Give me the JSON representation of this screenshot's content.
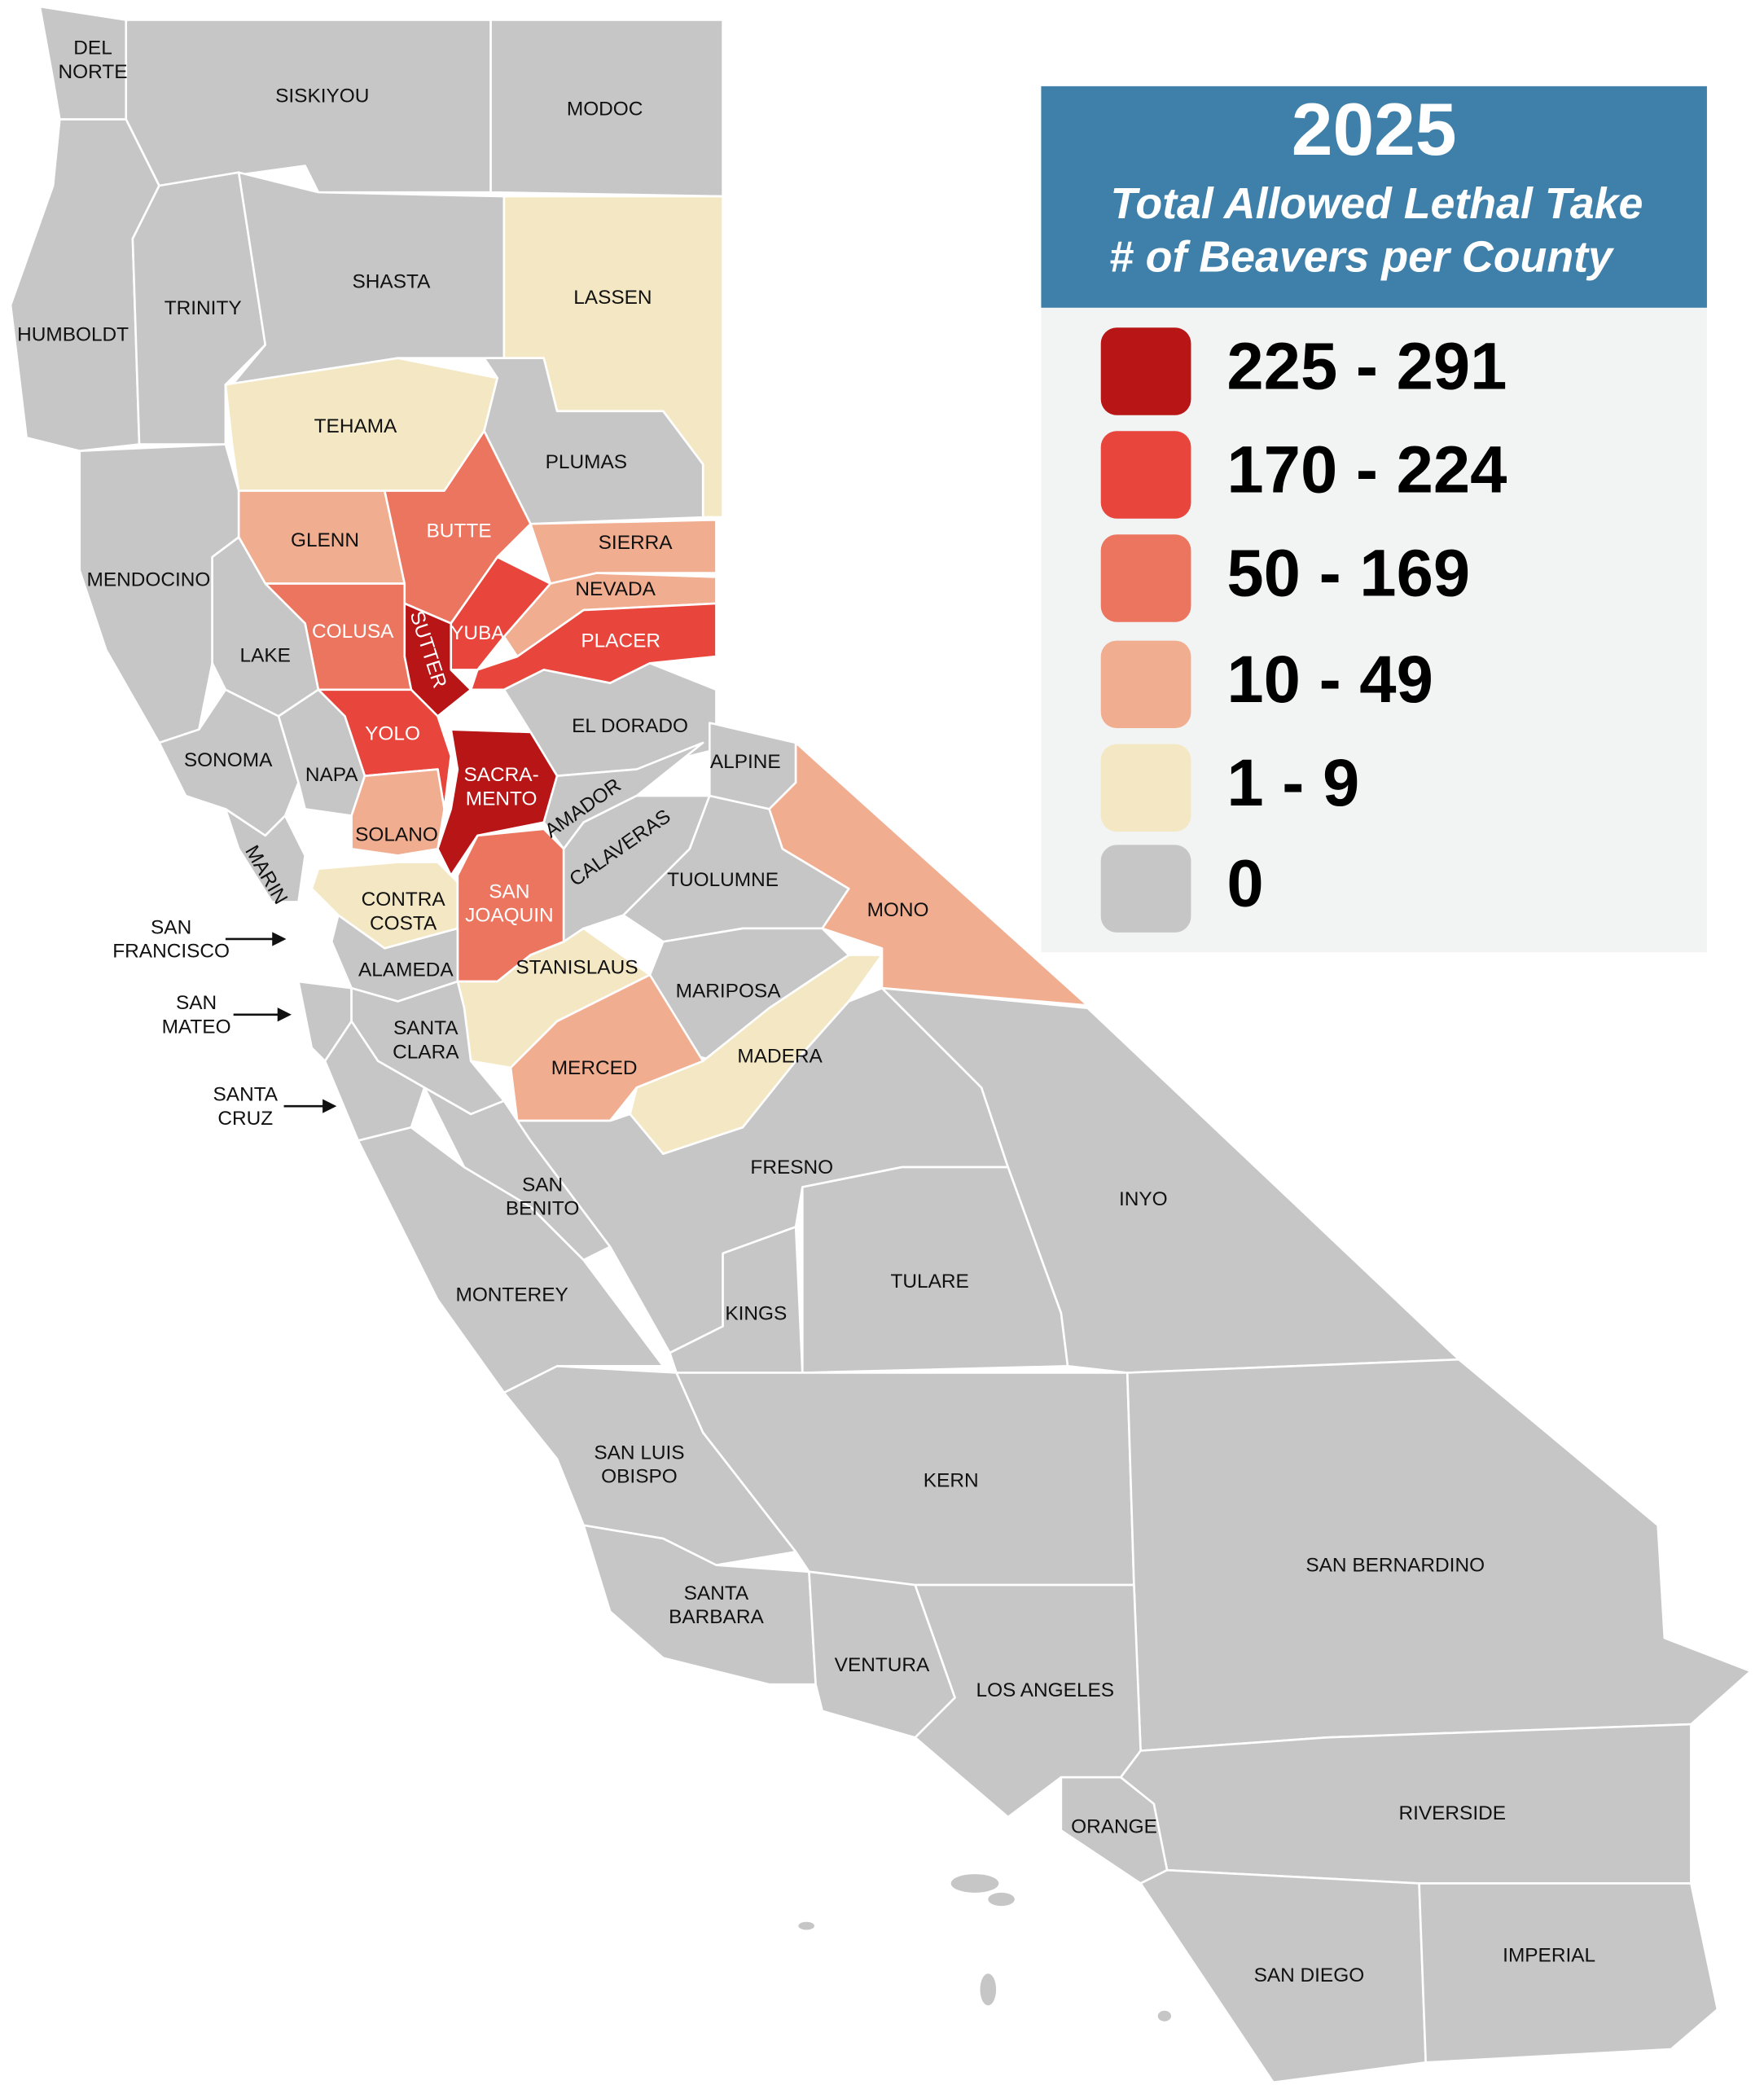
{
  "legend": {
    "title": "2025",
    "subtitle": [
      "Total Allowed Lethal Take",
      "# of Beavers per County"
    ],
    "items": [
      {
        "label": "225 - 291",
        "color": "#b71516"
      },
      {
        "label": "170 - 224",
        "color": "#e8453c"
      },
      {
        "label": "50 - 169",
        "color": "#ec7560"
      },
      {
        "label": "10 - 49",
        "color": "#f1ad90"
      },
      {
        "label": "1 - 9",
        "color": "#f4e8c4"
      },
      {
        "label": "0",
        "color": "#c6c6c6"
      }
    ]
  },
  "counties": [
    {
      "label": [
        "DEL",
        "NORTE"
      ],
      "color": "#c6c6c6"
    },
    {
      "label": [
        "SISKIYOU"
      ],
      "color": "#c6c6c6"
    },
    {
      "label": [
        "MODOC"
      ],
      "color": "#c6c6c6"
    },
    {
      "label": [
        "HUMBOLDT"
      ],
      "color": "#c6c6c6"
    },
    {
      "label": [
        "TRINITY"
      ],
      "color": "#c6c6c6"
    },
    {
      "label": [
        "SHASTA"
      ],
      "color": "#c6c6c6"
    },
    {
      "label": [
        "LASSEN"
      ],
      "color": "#f4e8c4"
    },
    {
      "label": [
        "TEHAMA"
      ],
      "color": "#f4e8c4"
    },
    {
      "label": [
        "PLUMAS"
      ],
      "color": "#c6c6c6"
    },
    {
      "label": [
        "MENDOCINO"
      ],
      "color": "#c6c6c6"
    },
    {
      "label": [
        "GLENN"
      ],
      "color": "#f1ad90"
    },
    {
      "label": [
        "BUTTE"
      ],
      "color": "#ec7560"
    },
    {
      "label": [
        "SIERRA"
      ],
      "color": "#f1ad90"
    },
    {
      "label": [
        "NEVADA"
      ],
      "color": "#f1ad90"
    },
    {
      "label": [
        "YUBA"
      ],
      "color": "#e8453c"
    },
    {
      "label": [
        "SUTTER"
      ],
      "color": "#b71516"
    },
    {
      "label": [
        "COLUSA"
      ],
      "color": "#ec7560"
    },
    {
      "label": [
        "LAKE"
      ],
      "color": "#c6c6c6"
    },
    {
      "label": [
        "PLACER"
      ],
      "color": "#e8453c"
    },
    {
      "label": [
        "EL DORADO"
      ],
      "color": "#c6c6c6"
    },
    {
      "label": [
        "YOLO"
      ],
      "color": "#e8453c"
    },
    {
      "label": [
        "SACRA-",
        "MENTO"
      ],
      "color": "#b71516"
    },
    {
      "label": [
        "SONOMA"
      ],
      "color": "#c6c6c6"
    },
    {
      "label": [
        "NAPA"
      ],
      "color": "#c6c6c6"
    },
    {
      "label": [
        "SOLANO"
      ],
      "color": "#f1ad90"
    },
    {
      "label": [
        "MARIN"
      ],
      "color": "#c6c6c6"
    },
    {
      "label": [
        "CONTRA",
        "COSTA"
      ],
      "color": "#f4e8c4"
    },
    {
      "label": [
        "SAN",
        "JOAQUIN"
      ],
      "color": "#ec7560"
    },
    {
      "label": [
        "AMADOR"
      ],
      "color": "#c6c6c6"
    },
    {
      "label": [
        "ALPINE"
      ],
      "color": "#c6c6c6"
    },
    {
      "label": [
        "CALAVERAS"
      ],
      "color": "#c6c6c6"
    },
    {
      "label": [
        "TUOLUMNE"
      ],
      "color": "#c6c6c6"
    },
    {
      "label": [
        "MONO"
      ],
      "color": "#f1ad90"
    },
    {
      "label": [
        "ALAMEDA"
      ],
      "color": "#c6c6c6"
    },
    {
      "label": [
        "STANISLAUS"
      ],
      "color": "#f4e8c4"
    },
    {
      "label": [
        "MARIPOSA"
      ],
      "color": "#c6c6c6"
    },
    {
      "label": [
        "MERCED"
      ],
      "color": "#f1ad90"
    },
    {
      "label": [
        "MADERA"
      ],
      "color": "#f4e8c4"
    },
    {
      "label": [
        "SAN",
        "MATEO"
      ],
      "color": "#c6c6c6"
    },
    {
      "label": [
        "SANTA",
        "CLARA"
      ],
      "color": "#c6c6c6"
    },
    {
      "label": [
        "SANTA",
        "CRUZ"
      ],
      "color": "#c6c6c6"
    },
    {
      "label": [
        "SAN",
        "BENITO"
      ],
      "color": "#c6c6c6"
    },
    {
      "label": [
        "MONTEREY"
      ],
      "color": "#c6c6c6"
    },
    {
      "label": [
        "FRESNO"
      ],
      "color": "#c6c6c6"
    },
    {
      "label": [
        "INYO"
      ],
      "color": "#c6c6c6"
    },
    {
      "label": [
        "KINGS"
      ],
      "color": "#c6c6c6"
    },
    {
      "label": [
        "TULARE"
      ],
      "color": "#c6c6c6"
    },
    {
      "label": [
        "SAN LUIS",
        "OBISPO"
      ],
      "color": "#c6c6c6"
    },
    {
      "label": [
        "KERN"
      ],
      "color": "#c6c6c6"
    },
    {
      "label": [
        "SAN BERNARDINO"
      ],
      "color": "#c6c6c6"
    },
    {
      "label": [
        "SANTA",
        "BARBARA"
      ],
      "color": "#c6c6c6"
    },
    {
      "label": [
        "VENTURA"
      ],
      "color": "#c6c6c6"
    },
    {
      "label": [
        "LOS ANGELES"
      ],
      "color": "#c6c6c6"
    },
    {
      "label": [
        "ORANGE"
      ],
      "color": "#c6c6c6"
    },
    {
      "label": [
        "RIVERSIDE"
      ],
      "color": "#c6c6c6"
    },
    {
      "label": [
        "SAN DIEGO"
      ],
      "color": "#c6c6c6"
    },
    {
      "label": [
        "IMPERIAL"
      ],
      "color": "#c6c6c6"
    },
    {
      "label": [
        "SAN",
        "FRANCISCO"
      ],
      "color": "#c6c6c6"
    }
  ]
}
